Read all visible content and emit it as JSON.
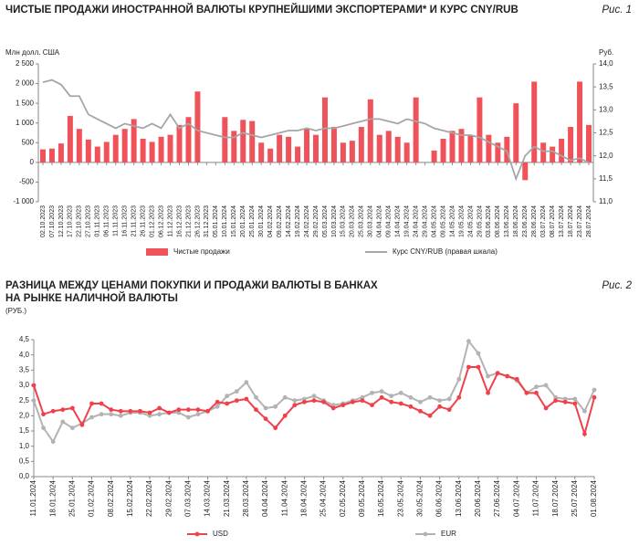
{
  "chart_data": [
    {
      "type": "bar",
      "title": "ЧИСТЫЕ ПРОДАЖИ ИНОСТРАННОЙ ВАЛЮТЫ КРУПНЕЙШИМИ ЭКСПОРТЕРАМИ* И КУРС CNY/RUB",
      "figure": "Рис. 1",
      "ylabel": "Млн долл. США",
      "y2label": "Руб.",
      "categories": [
        "02.10.2023",
        "07.10.2023",
        "12.10.2023",
        "17.10.2023",
        "22.10.2023",
        "27.10.2023",
        "01.11.2023",
        "06.11.2023",
        "11.11.2023",
        "16.11.2023",
        "21.11.2023",
        "26.11.2023",
        "01.12.2023",
        "06.12.2023",
        "11.12.2023",
        "16.12.2023",
        "21.12.2023",
        "26.12.2023",
        "31.12.2023",
        "05.01.2024",
        "10.01.2024",
        "15.01.2024",
        "20.01.2024",
        "25.01.2024",
        "30.01.2024",
        "04.02.2024",
        "09.02.2024",
        "14.02.2024",
        "19.02.2024",
        "24.02.2024",
        "29.02.2024",
        "05.03.2024",
        "10.03.2024",
        "15.03.2024",
        "20.03.2024",
        "25.03.2024",
        "30.03.2024",
        "04.04.2024",
        "09.04.2024",
        "14.04.2024",
        "19.04.2024",
        "24.04.2024",
        "29.04.2024",
        "04.05.2024",
        "09.05.2024",
        "14.05.2024",
        "19.05.2024",
        "24.05.2024",
        "29.05.2024",
        "03.06.2024",
        "08.06.2024",
        "13.06.2024",
        "18.06.2024",
        "23.06.2024",
        "28.06.2024",
        "03.07.2024",
        "08.07.2024",
        "13.07.2024",
        "18.07.2024",
        "23.07.2024",
        "28.07.2024"
      ],
      "series": [
        {
          "name": "Чистые продажи",
          "type": "bar",
          "color": "#f0525a",
          "values": [
            330,
            350,
            480,
            1180,
            850,
            580,
            400,
            520,
            700,
            850,
            1100,
            600,
            520,
            650,
            700,
            950,
            1150,
            1800,
            0,
            0,
            1150,
            800,
            1080,
            1050,
            500,
            350,
            700,
            650,
            400,
            850,
            700,
            1650,
            900,
            500,
            550,
            900,
            1600,
            700,
            800,
            650,
            500,
            1650,
            0,
            300,
            600,
            800,
            850,
            700,
            1650,
            700,
            500,
            650,
            1500,
            -450,
            2050,
            500,
            400,
            600,
            900,
            2050,
            950
          ]
        },
        {
          "name": "Курс CNY/RUB (правая шкала)",
          "type": "line",
          "axis": "y2",
          "color": "#a6a6a6",
          "values": [
            13.6,
            13.65,
            13.55,
            13.3,
            13.3,
            12.9,
            12.8,
            12.7,
            12.6,
            12.7,
            12.65,
            12.6,
            12.7,
            12.6,
            12.9,
            12.6,
            12.7,
            12.55,
            12.5,
            12.45,
            12.4,
            12.4,
            12.5,
            12.45,
            12.4,
            12.45,
            12.5,
            12.55,
            12.55,
            12.6,
            12.55,
            12.6,
            12.6,
            12.65,
            12.7,
            12.75,
            12.8,
            12.8,
            12.75,
            12.7,
            12.8,
            12.75,
            12.7,
            12.6,
            12.55,
            12.5,
            12.45,
            12.45,
            12.4,
            12.3,
            12.2,
            12.1,
            11.5,
            12.0,
            12.2,
            12.1,
            12.1,
            12.0,
            11.9,
            11.95,
            11.85
          ]
        }
      ],
      "ylim": [
        -1000,
        2500
      ],
      "yticks": [
        {
          "value": -1000,
          "label": "-1 000"
        },
        {
          "value": -500,
          "label": "-500"
        },
        0,
        500,
        {
          "value": 1000,
          "label": "1 000"
        },
        {
          "value": 1500,
          "label": "1 500"
        },
        {
          "value": 2000,
          "label": "2 000"
        },
        {
          "value": 2500,
          "label": "2 500"
        }
      ],
      "y2lim": [
        11,
        14
      ],
      "y2ticks": [
        {
          "value": 11,
          "label": "11,0"
        },
        {
          "value": 11.5,
          "label": "11,5"
        },
        {
          "value": 12,
          "label": "12,0"
        },
        {
          "value": 12.5,
          "label": "12,5"
        },
        {
          "value": 13,
          "label": "13,0"
        },
        {
          "value": 13.5,
          "label": "13,5"
        },
        {
          "value": 14,
          "label": "14,0"
        }
      ],
      "grid": false
    },
    {
      "type": "line",
      "title": [
        "РАЗНИЦА МЕЖДУ ЦЕНАМИ ПОКУПКИ И ПРОДАЖИ ВАЛЮТЫ В БАНКАХ",
        "НА РЫНКЕ НАЛИЧНОЙ ВАЛЮТЫ"
      ],
      "figure": "Рис. 2",
      "ylabel": "(РУБ.)",
      "categories": [
        "11.01.2024",
        null,
        "18.01.2024",
        null,
        "25.01.2024",
        null,
        "01.02.2024",
        null,
        "08.02.2024",
        null,
        "15.02.2024",
        null,
        "22.02.2024",
        null,
        "29.02.2024",
        null,
        "07.03.2024",
        null,
        "14.03.2024",
        null,
        "21.03.2024",
        null,
        "28.03.2024",
        null,
        "04.04.2024",
        null,
        "11.04.2024",
        null,
        "18.04.2024",
        null,
        "25.04.2024",
        null,
        "02.05.2024",
        null,
        "09.05.2024",
        null,
        "16.05.2024",
        null,
        "23.05.2024",
        null,
        "30.05.2024",
        null,
        "06.06.2024",
        null,
        "13.06.2024",
        null,
        "20.06.2024",
        null,
        "27.06.2024",
        null,
        "04.07.2024",
        null,
        "11.07.2024",
        null,
        "18.07.2024",
        null,
        "25.07.2024",
        null,
        "01.08.2024"
      ],
      "series": [
        {
          "name": "USD",
          "color": "#f0414b",
          "values": [
            3.0,
            2.05,
            2.15,
            2.2,
            2.25,
            1.7,
            2.4,
            2.4,
            2.2,
            2.15,
            2.15,
            2.15,
            2.1,
            2.25,
            2.1,
            2.2,
            2.2,
            2.2,
            2.15,
            2.45,
            2.4,
            2.5,
            2.55,
            2.2,
            1.9,
            1.6,
            2.0,
            2.35,
            2.45,
            2.5,
            2.45,
            2.25,
            2.35,
            2.45,
            2.5,
            2.35,
            2.6,
            2.45,
            2.4,
            2.3,
            2.15,
            2.0,
            2.3,
            2.2,
            2.6,
            3.6,
            3.6,
            2.75,
            3.4,
            3.3,
            3.2,
            2.75,
            2.75,
            2.25,
            2.5,
            2.45,
            2.4,
            1.4,
            2.6
          ]
        },
        {
          "name": "EUR",
          "color": "#b3b3b3",
          "values": [
            2.5,
            1.6,
            1.15,
            1.8,
            1.6,
            1.75,
            1.95,
            2.05,
            2.05,
            2.0,
            2.1,
            2.1,
            2.0,
            2.05,
            2.1,
            2.1,
            1.95,
            2.05,
            2.15,
            2.3,
            2.65,
            2.8,
            3.1,
            2.6,
            2.25,
            2.3,
            2.6,
            2.5,
            2.55,
            2.65,
            2.5,
            2.35,
            2.4,
            2.5,
            2.6,
            2.75,
            2.8,
            2.65,
            2.75,
            2.6,
            2.45,
            2.6,
            2.5,
            2.55,
            3.2,
            4.45,
            4.05,
            3.3,
            3.4,
            3.3,
            3.15,
            2.75,
            2.95,
            3.0,
            2.6,
            2.55,
            2.55,
            2.15,
            2.85
          ]
        }
      ],
      "ylim": [
        0,
        4.5
      ],
      "yticks": [
        {
          "value": 0,
          "label": "0,0"
        },
        {
          "value": 0.5,
          "label": "0,5"
        },
        {
          "value": 1,
          "label": "1,0"
        },
        {
          "value": 1.5,
          "label": "1,5"
        },
        {
          "value": 2,
          "label": "2,0"
        },
        {
          "value": 2.5,
          "label": "2,5"
        },
        {
          "value": 3,
          "label": "3,0"
        },
        {
          "value": 3.5,
          "label": "3,5"
        },
        {
          "value": 4,
          "label": "4,0"
        },
        {
          "value": 4.5,
          "label": "4,5"
        }
      ],
      "grid": false
    }
  ]
}
